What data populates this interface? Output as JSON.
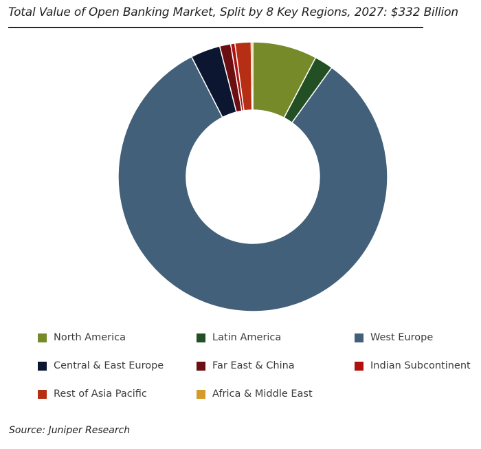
{
  "title": "Total Value of Open Banking Market, Split by 8 Key Regions, 2027: $332 Billion",
  "source": "Source: Juniper Research",
  "chart_data": {
    "type": "pie",
    "donut": true,
    "categories": [
      "North America",
      "Latin America",
      "West Europe",
      "Central & East Europe",
      "Far East & China",
      "Indian Subcontinent",
      "Rest of Asia Pacific",
      "Africa & Middle East"
    ],
    "values": [
      7.6,
      2.2,
      81.1,
      3.5,
      1.3,
      0.5,
      1.9,
      0.2
    ],
    "colors": [
      "#778a2a",
      "#234f25",
      "#426079",
      "#0c1630",
      "#6b0f12",
      "#b0100e",
      "#b62e14",
      "#d49a2a"
    ],
    "legend_position": "bottom"
  }
}
